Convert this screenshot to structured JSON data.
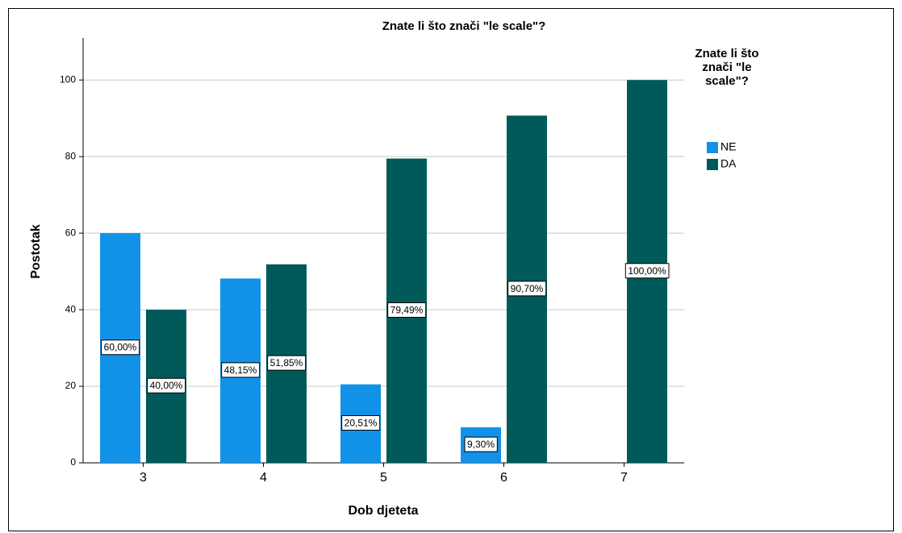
{
  "chart_data": {
    "type": "bar",
    "title": "Znate li što znači \"le scale\"?",
    "x_label": "Dob djeteta",
    "y_label": "Postotak",
    "legend_title": "Znate li što znači \"le scale\"?",
    "categories": [
      "3",
      "4",
      "5",
      "6",
      "7"
    ],
    "series": [
      {
        "name": "NE",
        "color": "#1192e8",
        "values": [
          60.0,
          48.15,
          20.51,
          9.3,
          null
        ],
        "value_labels": [
          "60,00%",
          "48,15%",
          "20,51%",
          "9,30%",
          null
        ]
      },
      {
        "name": "DA",
        "color": "#005a5a",
        "values": [
          40.0,
          51.85,
          79.49,
          90.7,
          100.0
        ],
        "value_labels": [
          "40,00%",
          "51,85%",
          "79,49%",
          "90,70%",
          "100,00%"
        ]
      }
    ],
    "ylim": [
      0,
      111
    ],
    "yticks": [
      0,
      20,
      40,
      60,
      80,
      100
    ],
    "grid": true,
    "legend": "right"
  }
}
